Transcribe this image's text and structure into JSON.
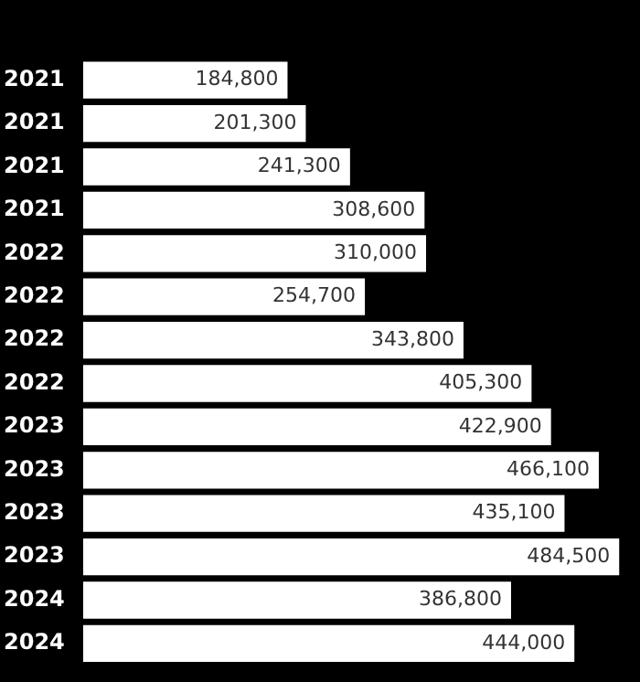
{
  "chart_data": {
    "type": "bar",
    "orientation": "horizontal",
    "categories": [
      "2021",
      "2021",
      "2021",
      "2021",
      "2022",
      "2022",
      "2022",
      "2022",
      "2023",
      "2023",
      "2023",
      "2023",
      "2024",
      "2024"
    ],
    "values": [
      184800,
      201300,
      241300,
      308600,
      310000,
      254700,
      343800,
      405300,
      422900,
      466100,
      435100,
      484500,
      386800,
      444000
    ],
    "value_labels": [
      "184,800",
      "201,300",
      "241,300",
      "308,600",
      "310,000",
      "254,700",
      "343,800",
      "405,300",
      "422,900",
      "466,100",
      "435,100",
      "484,500",
      "386,800",
      "444,000"
    ],
    "color": "#ffffff"
  }
}
